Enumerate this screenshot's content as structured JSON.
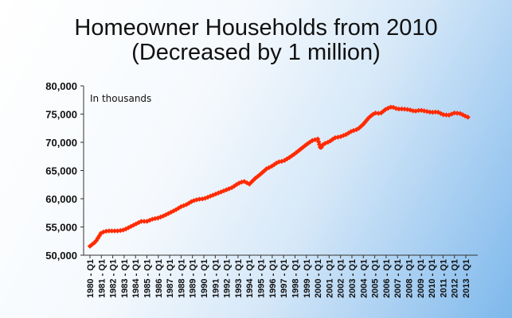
{
  "chart_data": {
    "type": "line",
    "title_line1": "Homeowner Households from 2010",
    "title_line2": "(Decreased by 1 million)",
    "annotation": "In thousands",
    "xlabel": "",
    "ylabel": "",
    "ylim": [
      50000,
      80000
    ],
    "y_ticks": [
      "50,000",
      "55,000",
      "60,000",
      "65,000",
      "70,000",
      "75,000",
      "80,000"
    ],
    "x_ticks": [
      "1980 - Q1",
      "1981 - Q1",
      "1982 - Q1",
      "1983 - Q1",
      "1984 - Q1",
      "1985 - Q1",
      "1986 - Q1",
      "1987 - Q1",
      "1988 - Q1",
      "1989 - Q1",
      "1990 - Q1",
      "1991 - Q1",
      "1992 - Q1",
      "1993 - Q1",
      "1994 - Q1",
      "1995 - Q1",
      "1996 - Q1",
      "1997 - Q1",
      "1998 - Q1",
      "1999 - Q1",
      "2000 - Q1",
      "2001 - Q1",
      "2002 - Q1",
      "2003 - Q1",
      "2004 - Q1",
      "2005 - Q1",
      "2006 - Q1",
      "2007 - Q1",
      "2008 - Q1",
      "2009 - Q1",
      "2010 - Q1",
      "2011 - Q1",
      "2012 - Q1",
      "2013 - Q1"
    ],
    "grid": false,
    "marker": "diamond",
    "series_color": "#ff2a00",
    "series": [
      {
        "x": [
          "1980 - Q1",
          "1980 - Q3",
          "1981 - Q1",
          "1981 - Q3",
          "1982 - Q1",
          "1982 - Q3",
          "1983 - Q1",
          "1983 - Q3",
          "1984 - Q1",
          "1984 - Q3",
          "1985 - Q1",
          "1985 - Q3",
          "1986 - Q1",
          "1986 - Q3",
          "1987 - Q1",
          "1987 - Q3",
          "1988 - Q1",
          "1988 - Q3",
          "1989 - Q1",
          "1989 - Q3",
          "1990 - Q1",
          "1990 - Q3",
          "1991 - Q1",
          "1991 - Q3",
          "1992 - Q1",
          "1992 - Q3",
          "1993 - Q1",
          "1993 - Q3",
          "1994 - Q1",
          "1994 - Q3",
          "1995 - Q1",
          "1995 - Q3",
          "1996 - Q1",
          "1996 - Q3",
          "1997 - Q1",
          "1997 - Q3",
          "1998 - Q1",
          "1998 - Q3",
          "1999 - Q1",
          "1999 - Q3",
          "2000 - Q1",
          "2000 - Q2",
          "2000 - Q3",
          "2001 - Q1",
          "2001 - Q3",
          "2002 - Q1",
          "2002 - Q3",
          "2003 - Q1",
          "2003 - Q3",
          "2004 - Q1",
          "2004 - Q3",
          "2005 - Q1",
          "2005 - Q3",
          "2006 - Q1",
          "2006 - Q3",
          "2007 - Q1",
          "2007 - Q3",
          "2008 - Q1",
          "2008 - Q3",
          "2009 - Q1",
          "2009 - Q3",
          "2010 - Q1",
          "2010 - Q3",
          "2011 - Q1",
          "2011 - Q3",
          "2012 - Q1",
          "2012 - Q3",
          "2013 - Q1",
          "2013 - Q2"
        ],
        "values": [
          51600,
          52400,
          54000,
          54300,
          54300,
          54300,
          54500,
          55000,
          55500,
          56000,
          56000,
          56400,
          56600,
          57000,
          57500,
          58000,
          58600,
          59000,
          59600,
          59900,
          60000,
          60400,
          60800,
          61200,
          61600,
          62000,
          62700,
          63100,
          62600,
          63600,
          64400,
          65300,
          65800,
          66500,
          66700,
          67300,
          68000,
          68800,
          69600,
          70300,
          70600,
          68900,
          69700,
          70100,
          70800,
          71000,
          71400,
          72000,
          72300,
          73200,
          74400,
          75200,
          75100,
          75900,
          76300,
          75900,
          75900,
          75800,
          75500,
          75700,
          75500,
          75300,
          75400,
          74900,
          74800,
          75200,
          75100,
          74600,
          74400
        ]
      }
    ]
  }
}
